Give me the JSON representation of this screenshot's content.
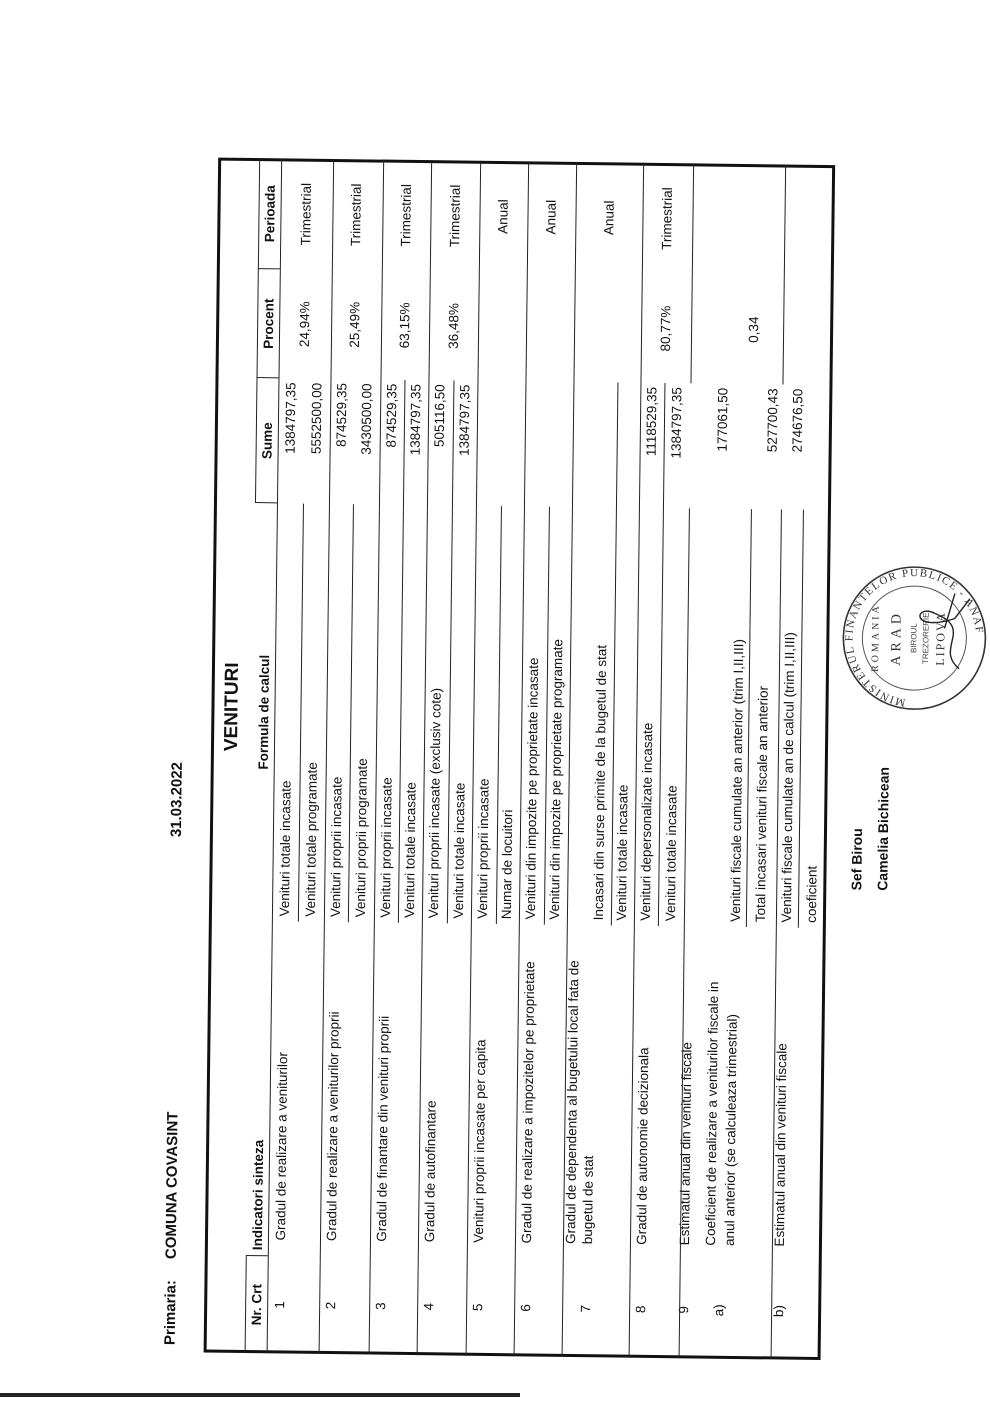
{
  "header": {
    "label": "Primaria:",
    "name": "COMUNA COVASINT",
    "date": "31.03.2022"
  },
  "table": {
    "title": "VENITURI",
    "columns": {
      "nr": "Nr. Crt",
      "indicator": "Indicatori sinteza",
      "formula": "Formula de calcul",
      "sume": "Sume",
      "procent": "Procent",
      "perioada": "Perioada"
    },
    "rows": [
      {
        "nr": "1",
        "indicator": [
          "Gradul de realizare a veniturilor"
        ],
        "formula": [
          "Venituri totale incasate",
          "Venituri totale programate"
        ],
        "sume": [
          "1384797,35",
          "5552500,00"
        ],
        "procent": "24,94%",
        "perioada": "Trimestrial"
      },
      {
        "nr": "2",
        "indicator": [
          "Gradul de realizare a veniturilor proprii"
        ],
        "formula": [
          "Venituri proprii incasate",
          "Venituri proprii programate"
        ],
        "sume": [
          "874529,35",
          "3430500,00"
        ],
        "procent": "25,49%",
        "perioada": "Trimestrial"
      },
      {
        "nr": "3",
        "indicator": [
          "Gradul de finantare din venituri proprii"
        ],
        "formula": [
          "Venituri proprii incasate",
          "Venituri totale incasate"
        ],
        "sume": [
          "874529,35",
          "1384797,35"
        ],
        "procent": "63,15%",
        "perioada": "Trimestrial"
      },
      {
        "nr": "4",
        "indicator": [
          "Gradul de autofinantare"
        ],
        "formula": [
          "Venituri proprii incasate (exclusiv cote)",
          "Venituri totale incasate"
        ],
        "sume": [
          "505116,50",
          "1384797,35"
        ],
        "procent": "36,48%",
        "perioada": "Trimestrial"
      },
      {
        "nr": "5",
        "indicator": [
          "Venituri proprii incasate per capita"
        ],
        "formula": [
          "Venituri proprii incasate",
          "Numar de locuitori"
        ],
        "sume": [],
        "procent": "",
        "perioada": "Anual"
      },
      {
        "nr": "6",
        "indicator": [
          "Gradul de realizare a impozitelor pe proprietate"
        ],
        "formula": [
          "Venituri din impozite pe proprietate incasate",
          "Venituri din impozite pe proprietate programate"
        ],
        "sume": [],
        "procent": "",
        "perioada": "Anual"
      },
      {
        "nr": "7",
        "indicator": [
          "Gradul de dependenta al bugetului local fata de",
          "bugetul de stat"
        ],
        "formula": [
          "Incasari din surse primite de la bugetul de stat",
          "Venituri totale incasate"
        ],
        "sume": [],
        "procent": "",
        "perioada": "Anual"
      },
      {
        "nr": "8",
        "indicator": [
          "Gradul de autonomie decizionala"
        ],
        "formula": [
          "Venituri depersonalizate incasate",
          "Venituri totale incasate"
        ],
        "sume": [
          "1118529,35",
          "1384797,35"
        ],
        "procent": "80,77%",
        "perioada": "Trimestrial"
      },
      {
        "nr": "9",
        "indicator": [
          "Estimatul anual din venituri fiscale"
        ],
        "formula": [],
        "sume": [],
        "procent": "",
        "perioada": ""
      },
      {
        "nr": "a)",
        "indicator": [
          "Coeficient de realizare a veniturilor fiscale in",
          "anul anterior (se calculeaza trimestrial)"
        ],
        "formula": [
          "Venituri fiscale cumulate an anterior (trim I,II,III)",
          "Total incasari venituri fiscale an anterior"
        ],
        "sume": [
          "177061,50",
          "527700,43"
        ],
        "procent": "0,34",
        "perioada": ""
      },
      {
        "nr": "b)",
        "indicator": [
          "Estimatul anual din venituri fiscale"
        ],
        "formula": [
          "Venituri fiscale cumulate an de calcul (trim I,II,III)",
          "coeficient"
        ],
        "sume": [
          "274676,50"
        ],
        "procent": "",
        "perioada": ""
      }
    ]
  },
  "stamp": {
    "outer_text": "MINISTERUL FINANTELOR PUBLICE - ANAF",
    "top_text": "ROMANIA",
    "city": "ARAD",
    "unit": "BIROUL TREZORERIE",
    "town": "LIPOVA",
    "ink_color": "#333333"
  },
  "signature": {
    "role": "Sef Birou",
    "name": "Camelia Bichicean"
  }
}
